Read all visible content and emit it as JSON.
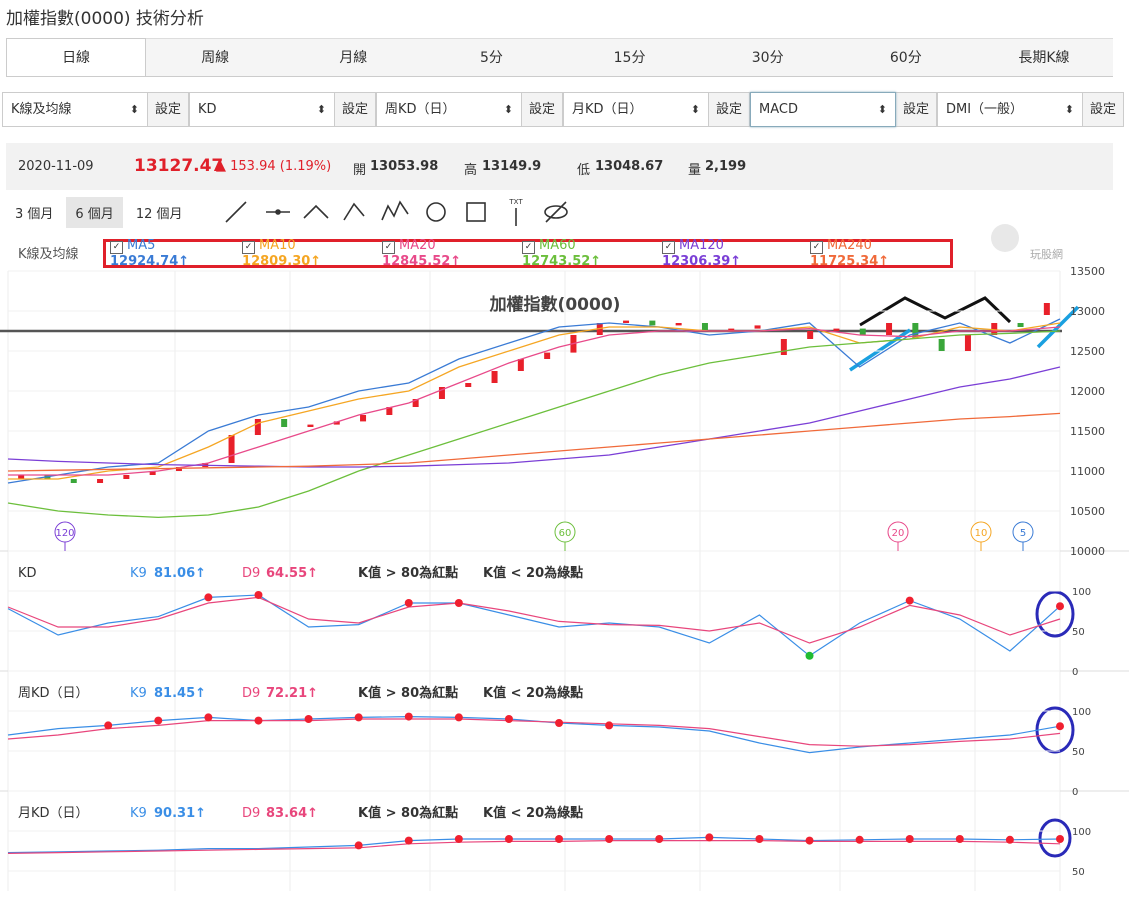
{
  "header": {
    "title": "加權指數(0000) 技術分析"
  },
  "tabs": [
    "日線",
    "周線",
    "月線",
    "5分",
    "15分",
    "30分",
    "60分",
    "長期K線"
  ],
  "selectors": [
    {
      "value": "K線及均線",
      "button": "設定"
    },
    {
      "value": "KD",
      "button": "設定"
    },
    {
      "value": "周KD（日）",
      "button": "設定"
    },
    {
      "value": "月KD（日）",
      "button": "設定"
    },
    {
      "value": "MACD",
      "button": "設定"
    },
    {
      "value": "DMI（一般）",
      "button": "設定"
    }
  ],
  "quote": {
    "date": "2020-11-09",
    "price": "13127.47",
    "change": "▲ 153.94 (1.19%)",
    "open_label": "開",
    "open": "13053.98",
    "high_label": "高",
    "high": "13149.9",
    "low_label": "低",
    "low": "13048.67",
    "volume_label": "量",
    "volume": "2,199"
  },
  "ranges": [
    "3 個月",
    "6 個月",
    "12 個月"
  ],
  "tool_text": "TXT",
  "logo": "玩股網",
  "ma_legend_title": "K線及均線",
  "chart_data": [
    {
      "type": "candlestick",
      "title": "加權指數(0000)",
      "open": [
        10900,
        10950,
        10900,
        10850,
        10900,
        10950,
        11000,
        11050,
        11100,
        11450,
        11650,
        11550,
        11580,
        11620,
        11700,
        11800,
        11900,
        12050,
        12100,
        12250,
        12400,
        12480,
        12700,
        12850,
        12880,
        12820,
        12850,
        12750,
        12780,
        12450,
        12650,
        12750,
        12780,
        12700,
        12850,
        12650,
        12500,
        12700,
        12850,
        12950
      ],
      "close": [
        10950,
        10900,
        10850,
        10900,
        10950,
        11000,
        11050,
        11100,
        11450,
        11650,
        11550,
        11580,
        11620,
        11700,
        11800,
        11900,
        12050,
        12100,
        12250,
        12400,
        12480,
        12700,
        12850,
        12880,
        12820,
        12850,
        12750,
        12780,
        12820,
        12650,
        12750,
        12780,
        12700,
        12850,
        12650,
        12500,
        12700,
        12850,
        12800,
        13100
      ],
      "up_color": "#e8202a",
      "down_color": "#3aa63a",
      "lines": [
        {
          "name": "MA5",
          "label": "12924.74↑",
          "color": "#3a7bd5",
          "values": [
            10850,
            10950,
            11050,
            11100,
            11500,
            11700,
            11800,
            12000,
            12100,
            12400,
            12600,
            12800,
            12850,
            12800,
            12700,
            12750,
            12850,
            12300,
            12700,
            12850,
            12600,
            12900
          ]
        },
        {
          "name": "MA10",
          "label": "12809.30↑",
          "color": "#f5a623",
          "values": [
            10900,
            10900,
            11000,
            11050,
            11300,
            11600,
            11750,
            11900,
            12000,
            12300,
            12500,
            12700,
            12800,
            12800,
            12750,
            12750,
            12800,
            12600,
            12650,
            12800,
            12750,
            12850
          ]
        },
        {
          "name": "MA20",
          "label": "12845.52↑",
          "color": "#e84a8a",
          "values": [
            10950,
            10950,
            10950,
            11000,
            11100,
            11300,
            11500,
            11700,
            11850,
            12100,
            12350,
            12550,
            12700,
            12750,
            12750,
            12750,
            12780,
            12700,
            12680,
            12750,
            12750,
            12800
          ]
        },
        {
          "name": "MA60",
          "label": "12743.52↑",
          "color": "#6cbf3c",
          "values": [
            10600,
            10500,
            10450,
            10420,
            10450,
            10550,
            10750,
            11000,
            11200,
            11400,
            11600,
            11800,
            12000,
            12200,
            12350,
            12450,
            12550,
            12600,
            12650,
            12700,
            12720,
            12750
          ]
        },
        {
          "name": "MA120",
          "label": "12306.39↑",
          "color": "#7b3fd6",
          "values": [
            11150,
            11120,
            11100,
            11080,
            11070,
            11060,
            11050,
            11050,
            11060,
            11080,
            11100,
            11150,
            11200,
            11300,
            11400,
            11500,
            11600,
            11750,
            11900,
            12050,
            12150,
            12300
          ]
        },
        {
          "name": "MA240",
          "label": "11725.34↑",
          "color": "#f06a3a",
          "values": [
            11000,
            11010,
            11020,
            11030,
            11040,
            11050,
            11060,
            11080,
            11100,
            11150,
            11200,
            11250,
            11300,
            11350,
            11400,
            11450,
            11500,
            11550,
            11600,
            11650,
            11680,
            11720
          ]
        }
      ],
      "markers": [
        {
          "label": "120",
          "color": "#7b3fd6"
        },
        {
          "label": "60",
          "color": "#6cbf3c"
        },
        {
          "label": "20",
          "color": "#e84a8a"
        },
        {
          "label": "10",
          "color": "#f5a623"
        },
        {
          "label": "5",
          "color": "#3a7bd5"
        }
      ],
      "ylim": [
        10000,
        13500
      ],
      "yticks": [
        10000,
        10500,
        11000,
        11500,
        12000,
        12500,
        13000,
        13500
      ]
    },
    {
      "type": "line",
      "title": "KD",
      "notes": [
        "K值 > 80為紅點",
        "K值 < 20為綠點"
      ],
      "upper": 80,
      "lower": 20,
      "series": [
        {
          "name": "K9",
          "label": "81.06↑",
          "color": "#3a8ee6",
          "values": [
            78,
            45,
            60,
            68,
            92,
            95,
            55,
            58,
            85,
            85,
            70,
            55,
            60,
            55,
            35,
            70,
            19,
            60,
            88,
            65,
            25,
            81
          ]
        },
        {
          "name": "D9",
          "label": "64.55↑",
          "color": "#e8467c",
          "values": [
            80,
            55,
            55,
            65,
            85,
            92,
            65,
            60,
            80,
            85,
            75,
            62,
            58,
            57,
            50,
            60,
            35,
            55,
            82,
            70,
            45,
            65
          ]
        }
      ],
      "ylim": [
        0,
        125
      ],
      "yticks": [
        0,
        50,
        100
      ]
    },
    {
      "type": "line",
      "title": "周KD（日）",
      "notes": [
        "K值 > 80為紅點",
        "K值 < 20為綠點"
      ],
      "upper": 80,
      "lower": 20,
      "series": [
        {
          "name": "K9",
          "label": "81.45↑",
          "color": "#3a8ee6",
          "values": [
            70,
            78,
            82,
            88,
            92,
            88,
            90,
            92,
            93,
            92,
            90,
            85,
            82,
            80,
            75,
            60,
            48,
            55,
            60,
            65,
            70,
            81
          ]
        },
        {
          "name": "D9",
          "label": "72.21↑",
          "color": "#e8467c",
          "values": [
            65,
            70,
            78,
            82,
            88,
            88,
            88,
            90,
            90,
            90,
            88,
            86,
            84,
            82,
            78,
            68,
            58,
            56,
            58,
            62,
            65,
            72
          ]
        }
      ],
      "ylim": [
        0,
        125
      ],
      "yticks": [
        0,
        50,
        100
      ]
    },
    {
      "type": "line",
      "title": "月KD（日）",
      "notes": [
        "K值 > 80為紅點",
        "K值 < 20為綠點"
      ],
      "upper": 80,
      "lower": 20,
      "series": [
        {
          "name": "K9",
          "label": "90.31↑",
          "color": "#3a8ee6",
          "values": [
            73,
            74,
            75,
            76,
            78,
            78,
            80,
            82,
            88,
            90,
            90,
            90,
            90,
            90,
            92,
            90,
            88,
            89,
            90,
            90,
            89,
            90
          ]
        },
        {
          "name": "D9",
          "label": "83.64↑",
          "color": "#e8467c",
          "values": [
            72,
            73,
            74,
            75,
            76,
            77,
            78,
            79,
            84,
            86,
            87,
            87,
            88,
            88,
            88,
            88,
            87,
            87,
            87,
            87,
            86,
            84
          ]
        }
      ],
      "ylim": [
        25,
        125
      ],
      "yticks": [
        50,
        100
      ]
    }
  ]
}
